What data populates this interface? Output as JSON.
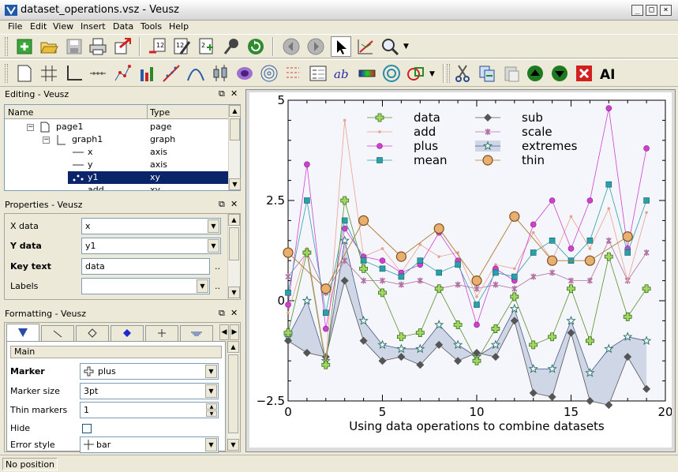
{
  "window": {
    "title": "dataset_operations.vsz - Veusz"
  },
  "menu": [
    "File",
    "Edit",
    "View",
    "Insert",
    "Data",
    "Tools",
    "Help"
  ],
  "editing": {
    "title": "Editing - Veusz",
    "columns": [
      "Name",
      "Type"
    ],
    "rows": [
      {
        "name": "page1",
        "type": "page"
      },
      {
        "name": "graph1",
        "type": "graph"
      },
      {
        "name": "x",
        "type": "axis"
      },
      {
        "name": "y",
        "type": "axis"
      },
      {
        "name": "y1",
        "type": "xy",
        "selected": true
      },
      {
        "name": "add",
        "type": "xy"
      }
    ]
  },
  "properties": {
    "title": "Properties - Veusz",
    "rows": [
      {
        "label": "X data",
        "value": "x",
        "bold": false
      },
      {
        "label": "Y data",
        "value": "y1",
        "bold": true
      },
      {
        "label": "Key text",
        "value": "data",
        "bold": true
      },
      {
        "label": "Labels",
        "value": "",
        "bold": false
      }
    ],
    "ellipsis": ".."
  },
  "formatting": {
    "title": "Formatting - Veusz",
    "section": "Main",
    "rows": [
      {
        "label": "Marker",
        "value": "plus",
        "bold": true
      },
      {
        "label": "Marker size",
        "value": "3pt",
        "bold": false
      },
      {
        "label": "Thin markers",
        "value": "1",
        "bold": false
      },
      {
        "label": "Hide",
        "value": "",
        "bold": false
      },
      {
        "label": "Error style",
        "value": "bar",
        "bold": false
      }
    ]
  },
  "status": {
    "text": "No position"
  },
  "colors": {
    "selection": "#0a246a",
    "accent": "#f5f6fb"
  },
  "chart_data": {
    "type": "line",
    "title": "",
    "xlabel": "Using data operations to combine datasets",
    "ylabel": "",
    "xlim": [
      0,
      20
    ],
    "ylim": [
      -2.5,
      5
    ],
    "x_ticks": [
      "0",
      "5",
      "10",
      "15",
      "20"
    ],
    "y_ticks": [
      "5",
      "2.5",
      "0",
      "−2.5"
    ],
    "x": [
      0,
      1,
      2,
      3,
      4,
      5,
      6,
      7,
      8,
      9,
      10,
      11,
      12,
      13,
      14,
      15,
      16,
      17,
      18,
      19
    ],
    "legend_placement": "top",
    "series": [
      {
        "name": "data",
        "color": "#5a8f2e",
        "marker": "plus",
        "values": [
          -0.8,
          1.2,
          -1.6,
          2.5,
          0.8,
          0.2,
          -0.9,
          -0.8,
          0.3,
          -0.6,
          -1.5,
          -0.7,
          0.1,
          -1.1,
          -0.9,
          0.3,
          -1.0,
          1.1,
          -0.4,
          0.3
        ]
      },
      {
        "name": "add",
        "color": "#e8a090",
        "marker": "dot",
        "values": [
          -0.3,
          1.3,
          -1.5,
          4.5,
          1.1,
          1.3,
          0.7,
          1.4,
          1.1,
          1.2,
          0.1,
          0.9,
          0.8,
          1.7,
          1.0,
          2.1,
          1.3,
          2.3,
          0.5,
          2.2
        ]
      },
      {
        "name": "plus",
        "color": "#d040d0",
        "marker": "circle",
        "values": [
          -0.1,
          3.4,
          -0.7,
          1.8,
          1.1,
          1.0,
          0.7,
          0.9,
          1.7,
          1.0,
          -0.6,
          0.8,
          0.5,
          1.9,
          2.5,
          1.3,
          2.5,
          4.8,
          1.3,
          3.8
        ]
      },
      {
        "name": "mean",
        "color": "#2aa0a8",
        "marker": "square",
        "values": [
          0.2,
          2.5,
          -0.3,
          2.0,
          1.0,
          0.8,
          0.6,
          1.0,
          0.7,
          0.9,
          -0.1,
          0.7,
          0.6,
          1.2,
          1.5,
          1.0,
          1.5,
          2.9,
          1.2,
          2.5
        ]
      },
      {
        "name": "sub",
        "color": "#555555",
        "marker": "diamond",
        "values": [
          -1.0,
          -1.3,
          -1.4,
          0.5,
          -1.0,
          -1.5,
          -1.4,
          -1.6,
          -1.1,
          -1.5,
          -1.3,
          -1.4,
          -0.5,
          -2.3,
          -2.4,
          -0.8,
          -2.5,
          -2.6,
          -1.4,
          -2.2
        ]
      },
      {
        "name": "scale",
        "color": "#b070a0",
        "marker": "star",
        "values": [
          0.6,
          1.2,
          0.2,
          1.0,
          0.5,
          0.5,
          0.4,
          0.5,
          0.3,
          0.4,
          0.3,
          0.4,
          0.3,
          0.6,
          0.7,
          0.5,
          0.5,
          1.5,
          0.5,
          1.2
        ]
      },
      {
        "name": "extremes",
        "color": "#4a5a8a",
        "marker": "star-open",
        "fill": "#cfd7e6",
        "values": [
          -0.9,
          0.0,
          -1.5,
          1.5,
          -0.5,
          -1.1,
          -1.2,
          -1.2,
          -0.6,
          -1.1,
          -1.4,
          -1.1,
          -0.2,
          -1.7,
          -1.7,
          -0.5,
          -1.8,
          -1.2,
          -0.9,
          -1.0
        ]
      },
      {
        "name": "thin",
        "color": "#b07a30",
        "marker": "circle-big",
        "values": [
          1.2,
          null,
          0.3,
          null,
          2.0,
          null,
          1.1,
          null,
          1.8,
          null,
          0.5,
          null,
          2.1,
          null,
          1.0,
          null,
          1.0,
          null,
          1.6,
          null
        ]
      }
    ]
  }
}
